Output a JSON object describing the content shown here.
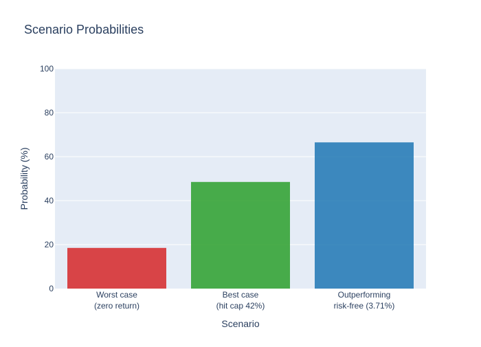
{
  "chart_data": {
    "type": "bar",
    "title": "Scenario Probabilities",
    "xlabel": "Scenario",
    "ylabel": "Probability (%)",
    "categories": [
      [
        "Worst case",
        "(zero return)"
      ],
      [
        "Best case",
        "(hit cap 42%)"
      ],
      [
        "Outperforming",
        "risk-free (3.71%)"
      ]
    ],
    "values": [
      18.5,
      48.5,
      66.5
    ],
    "colors": [
      "#d62728",
      "#2ca02c",
      "#1f77b4"
    ],
    "ylim": [
      0,
      100
    ],
    "yticks": [
      0,
      20,
      40,
      60,
      80,
      100
    ],
    "grid": true,
    "legend": "none",
    "plot_background": "#e5ecf6"
  }
}
